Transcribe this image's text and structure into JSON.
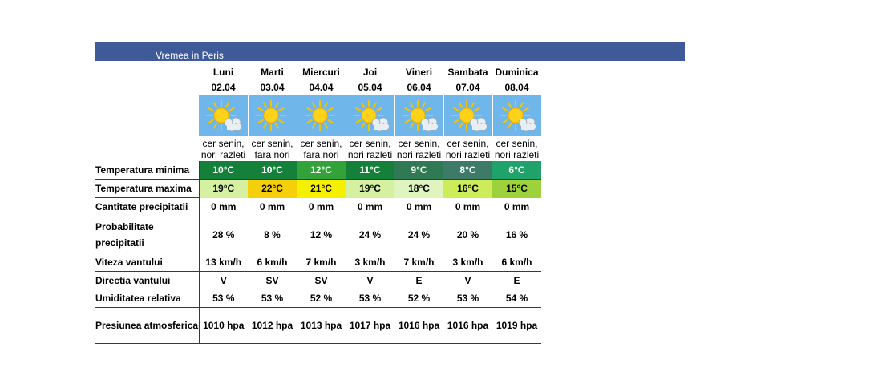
{
  "title": "Vremea in Peris",
  "days": [
    {
      "day": "Luni",
      "date": "02.04",
      "desc1": "cer senin,",
      "desc2": "nori razleti",
      "tmin": "10°C",
      "tmax": "19°C",
      "tmin_color": "#14803a",
      "tmax_color": "#d4f0a0",
      "prec": "0 mm",
      "prob": "28 %",
      "wind": "13 km/h",
      "dir": "V",
      "hum": "53 %",
      "pres": "1010 hpa",
      "icon": "sun-cloud-icon"
    },
    {
      "day": "Marti",
      "date": "03.04",
      "desc1": "cer senin,",
      "desc2": "fara nori",
      "tmin": "10°C",
      "tmax": "22°C",
      "tmin_color": "#14803a",
      "tmax_color": "#f5d00a",
      "prec": "0 mm",
      "prob": "8 %",
      "wind": "6 km/h",
      "dir": "SV",
      "hum": "53 %",
      "pres": "1012 hpa",
      "icon": "sun-icon"
    },
    {
      "day": "Miercuri",
      "date": "04.04",
      "desc1": "cer senin,",
      "desc2": "fara nori",
      "tmin": "12°C",
      "tmax": "21°C",
      "tmin_color": "#33a238",
      "tmax_color": "#f5f000",
      "prec": "0 mm",
      "prob": "12 %",
      "wind": "7 km/h",
      "dir": "SV",
      "hum": "52 %",
      "pres": "1013 hpa",
      "icon": "sun-icon"
    },
    {
      "day": "Joi",
      "date": "05.04",
      "desc1": "cer senin,",
      "desc2": "nori razleti",
      "tmin": "11°C",
      "tmax": "19°C",
      "tmin_color": "#14803a",
      "tmax_color": "#d4f0a0",
      "prec": "0 mm",
      "prob": "24 %",
      "wind": "3 km/h",
      "dir": "V",
      "hum": "53 %",
      "pres": "1017 hpa",
      "icon": "sun-cloud-icon"
    },
    {
      "day": "Vineri",
      "date": "06.04",
      "desc1": "cer senin,",
      "desc2": "nori razleti",
      "tmin": "9°C",
      "tmax": "18°C",
      "tmin_color": "#2f7a55",
      "tmax_color": "#e0f4c0",
      "prec": "0 mm",
      "prob": "24 %",
      "wind": "7 km/h",
      "dir": "E",
      "hum": "52 %",
      "pres": "1016 hpa",
      "icon": "sun-cloud-icon"
    },
    {
      "day": "Sambata",
      "date": "07.04",
      "desc1": "cer senin,",
      "desc2": "nori razleti",
      "tmin": "8°C",
      "tmax": "16°C",
      "tmin_color": "#3e7a68",
      "tmax_color": "#ccec5a",
      "prec": "0 mm",
      "prob": "20 %",
      "wind": "3 km/h",
      "dir": "V",
      "hum": "53 %",
      "pres": "1016 hpa",
      "icon": "sun-cloud-icon"
    },
    {
      "day": "Duminica",
      "date": "08.04",
      "desc1": "cer senin,",
      "desc2": "nori razleti",
      "tmin": "6°C",
      "tmax": "15°C",
      "tmin_color": "#1fa36a",
      "tmax_color": "#9ed23c",
      "prec": "0 mm",
      "prob": "16 %",
      "wind": "6 km/h",
      "dir": "E",
      "hum": "54 %",
      "pres": "1019 hpa",
      "icon": "sun-cloud-icon"
    }
  ],
  "labels": {
    "tmin": "Temperatura minima",
    "tmax": "Temperatura maxima",
    "prec": "Cantitate precipitatii",
    "prob": "Probabilitate precipitatii",
    "wind": "Viteza vantului",
    "dir": "Directia vantului",
    "hum": "Umiditatea relativa",
    "pres": "Presiunea atmosferica"
  },
  "colors": {
    "header": "#3f5a99",
    "icon_bg": "#6fb6ea",
    "rule": "#1f3a7a"
  }
}
